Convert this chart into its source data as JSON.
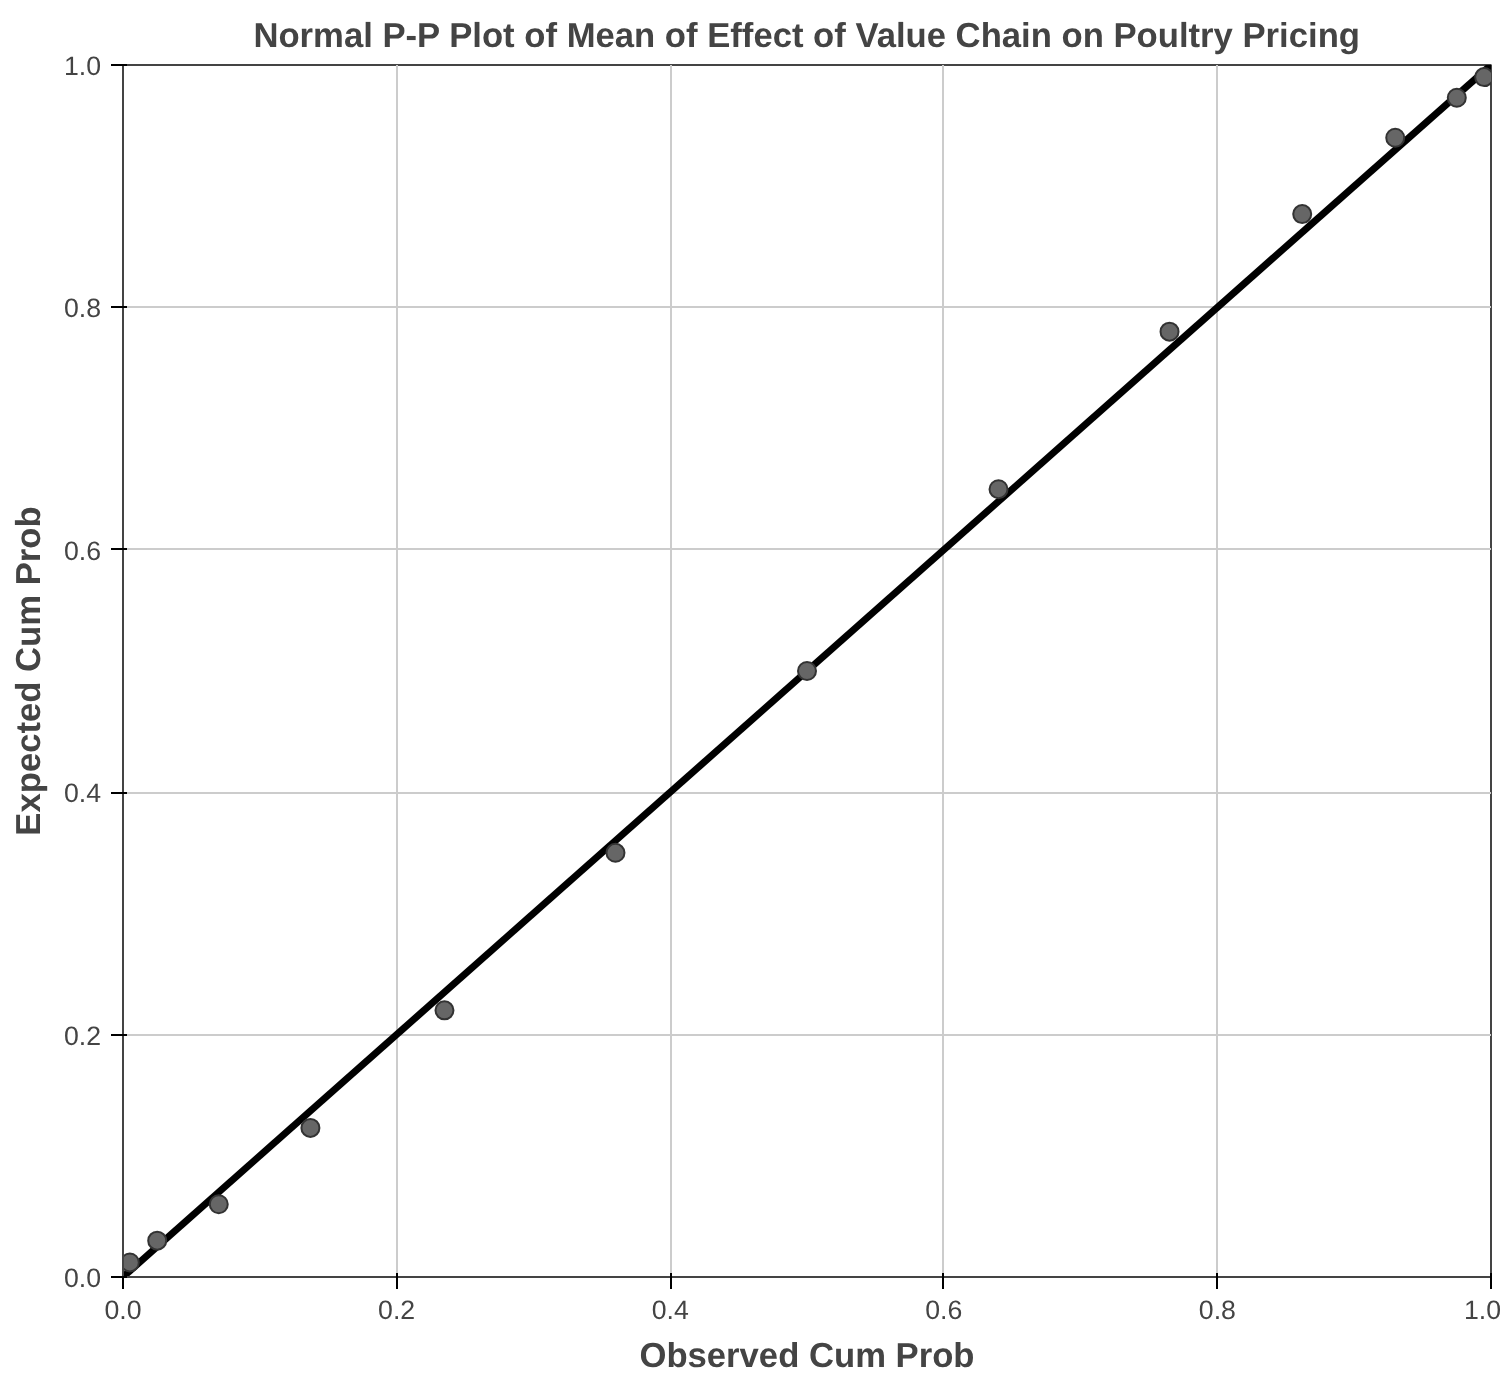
{
  "chart_data": {
    "type": "scatter",
    "title": "Normal P-P Plot of Mean of Effect of Value Chain on Poultry Pricing",
    "xlabel": "Observed Cum Prob",
    "ylabel": "Expected Cum Prob",
    "xlim": [
      0,
      1
    ],
    "ylim": [
      0,
      1
    ],
    "xticks": [
      {
        "value": 0,
        "label": "0.0"
      },
      0.2,
      0.4,
      0.6,
      0.8,
      {
        "value": 1,
        "label": "1.0"
      }
    ],
    "yticks": [
      {
        "value": 0,
        "label": "0.0"
      },
      0.2,
      0.4,
      0.6,
      0.8,
      {
        "value": 1,
        "label": "1.0"
      }
    ],
    "grid": true,
    "series": [
      {
        "marker": "circle",
        "color": "#666666",
        "x": [
          0.005,
          0.025,
          0.07,
          0.137,
          0.235,
          0.36,
          0.5,
          0.64,
          0.765,
          0.862,
          0.93,
          0.975,
          0.995
        ],
        "values": [
          0.012,
          0.03,
          0.06,
          0.123,
          0.22,
          0.35,
          0.5,
          0.65,
          0.78,
          0.877,
          0.94,
          0.973,
          0.99
        ]
      },
      {
        "type": "line",
        "color": "#000000",
        "x": [
          0,
          1
        ],
        "values": [
          0,
          1
        ]
      }
    ]
  }
}
